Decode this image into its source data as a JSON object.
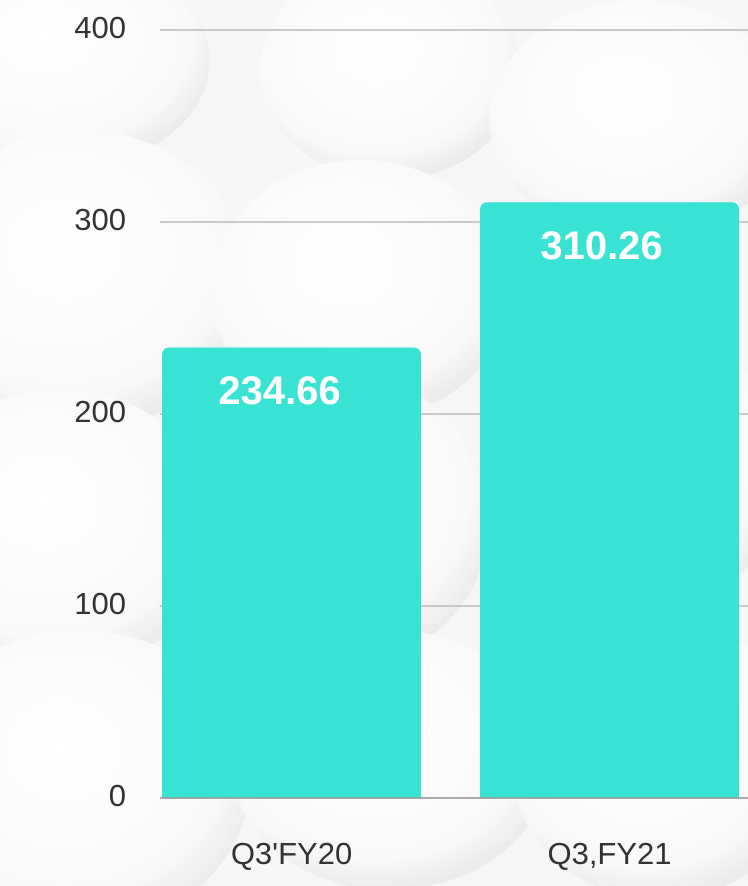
{
  "chart_data": {
    "type": "bar",
    "categories": [
      "Q3'FY20",
      "Q3,FY21"
    ],
    "values": [
      234.66,
      310.26
    ],
    "color": "#38e3d3",
    "ylim": [
      0,
      400
    ],
    "yticks": [
      0,
      100,
      200,
      300,
      400
    ],
    "grid": true
  }
}
